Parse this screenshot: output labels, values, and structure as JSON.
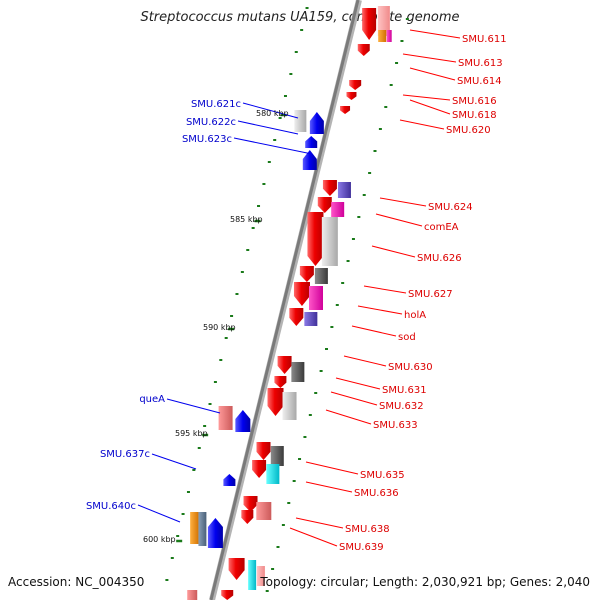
{
  "title": "Streptococcus mutans UA159, complete genome",
  "footer": {
    "accession": "Accession: NC_004350",
    "topology": "Topology: circular; Length: 2,030,921 bp; Genes: 2,040"
  },
  "colors": {
    "forward": "#ff0000",
    "reverse": "#0000ee",
    "backbone": "#8c8c8c",
    "tick": "#1a7a1a"
  },
  "scale_labels": [
    "580 kbp",
    "585 kbp",
    "590 kbp",
    "595 kbp",
    "600 kbp"
  ],
  "genes_right": [
    "SMU.611",
    "SMU.613",
    "SMU.614",
    "SMU.616",
    "SMU.618",
    "SMU.620",
    "SMU.624",
    "comEA",
    "SMU.626",
    "SMU.627",
    "holA",
    "sod",
    "SMU.630",
    "SMU.631",
    "SMU.632",
    "SMU.633",
    "SMU.635",
    "SMU.636",
    "SMU.638",
    "SMU.639"
  ],
  "genes_left": [
    "SMU.621c",
    "SMU.622c",
    "SMU.623c",
    "queA",
    "SMU.637c",
    "SMU.640c"
  ]
}
